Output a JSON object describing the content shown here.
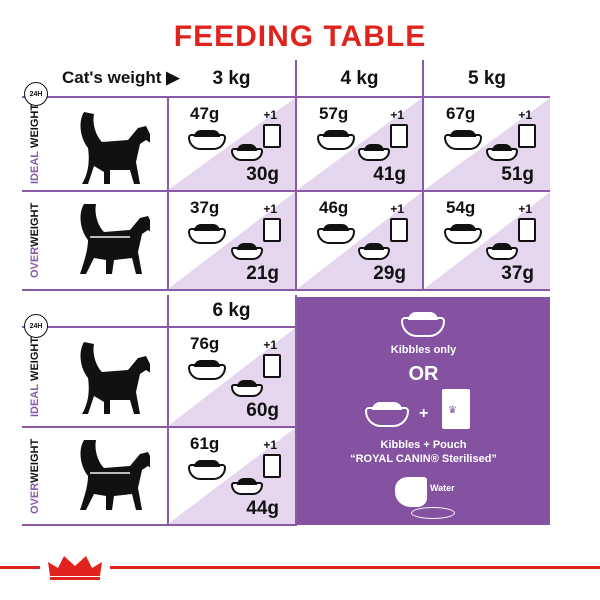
{
  "title": "FEEDING TABLE",
  "header": {
    "cats_weight": "Cat's weight",
    "clock": "24H",
    "weights_top": [
      "3 kg",
      "4 kg",
      "5 kg"
    ],
    "weight_bottom": "6 kg"
  },
  "row_labels": {
    "ideal": {
      "accent": "IDEAL",
      "rest": " WEIGHT"
    },
    "over": {
      "accent": "OVER",
      "rest": "WEIGHT"
    }
  },
  "rows": {
    "ideal_top": [
      {
        "dry": "47g",
        "wet": "30g"
      },
      {
        "dry": "57g",
        "wet": "41g"
      },
      {
        "dry": "67g",
        "wet": "51g"
      }
    ],
    "over_top": [
      {
        "dry": "37g",
        "wet": "21g"
      },
      {
        "dry": "46g",
        "wet": "29g"
      },
      {
        "dry": "54g",
        "wet": "37g"
      }
    ],
    "ideal_bottom": [
      {
        "dry": "76g",
        "wet": "60g"
      }
    ],
    "over_bottom": [
      {
        "dry": "61g",
        "wet": "44g"
      }
    ]
  },
  "plus_label": "+1",
  "legend": {
    "kibbles_only": "Kibbles only",
    "or": "OR",
    "plus": "+",
    "kibbles_pouch": "Kibbles + Pouch",
    "product": "“ROYAL CANIN® Sterilised”",
    "water": "Water"
  },
  "colors": {
    "accent_purple": "#8552a1",
    "light_purple": "#e5d6ee",
    "brand_red": "#e0231d"
  },
  "brand": "ROYAL CANIN"
}
